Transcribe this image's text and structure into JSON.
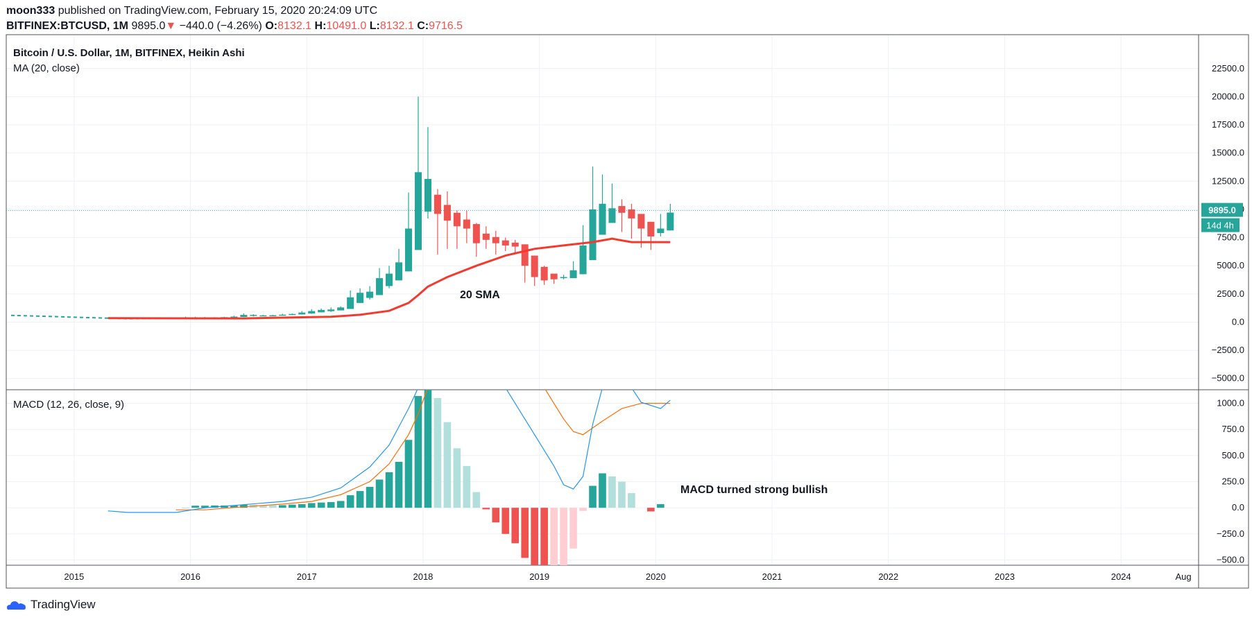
{
  "header": {
    "user": "moon333",
    "published": "published on TradingView.com, February 15, 2020 20:24:09 UTC",
    "symbol": "BITFINEX:BTCUSD, 1M",
    "last": "9895.0",
    "change_arrow": "▼",
    "change": "−440.0 (−4.26%)",
    "o_label": "O:",
    "o_value": "8132.1",
    "h_label": "H:",
    "h_value": "10491.0",
    "l_label": "L:",
    "l_value": "8132.1",
    "c_label": "C:",
    "c_value": "9716.5"
  },
  "footer": {
    "brand": "TradingView"
  },
  "chart_data": [
    {
      "type": "candlestick",
      "title": "Bitcoin / U.S. Dollar, 1M, BITFINEX, Heikin Ashi",
      "indicator_label": "MA (20, close)",
      "annotation": "20 SMA",
      "price_label": "9895.0",
      "countdown_label": "14d 4h",
      "last_price": 9895,
      "ylim": [
        -6000,
        25500
      ],
      "yticks": [
        22500,
        20000,
        17500,
        15000,
        12500,
        10000,
        7500,
        5000,
        2500,
        0,
        -2500,
        -5000
      ],
      "ytick_labels": [
        "22500.0",
        "20000.0",
        "17500.0",
        "15000.0",
        "12500.0",
        "10000.0",
        "7500.0",
        "5000.0",
        "2500.0",
        "0.0",
        "−2500.0",
        "−5000.0"
      ],
      "xlim": [
        "2014-06",
        "2024-09"
      ],
      "xticks": [
        "2015",
        "2016",
        "2017",
        "2018",
        "2019",
        "2020",
        "2021",
        "2022",
        "2023",
        "2024",
        "Aug"
      ],
      "colors": {
        "up": "#26a69a",
        "down": "#ef5350",
        "ma": "#f23b2e"
      },
      "candles": [
        {
          "x": "2015-12",
          "o": 300,
          "h": 480,
          "l": 280,
          "c": 420
        },
        {
          "x": "2016-01",
          "o": 330,
          "h": 470,
          "l": 300,
          "c": 400
        },
        {
          "x": "2016-02",
          "o": 350,
          "h": 450,
          "l": 320,
          "c": 410
        },
        {
          "x": "2016-03",
          "o": 380,
          "h": 440,
          "l": 370,
          "c": 415
        },
        {
          "x": "2016-04",
          "o": 400,
          "h": 470,
          "l": 390,
          "c": 440
        },
        {
          "x": "2016-05",
          "o": 420,
          "h": 560,
          "l": 420,
          "c": 490
        },
        {
          "x": "2016-06",
          "o": 460,
          "h": 780,
          "l": 450,
          "c": 640
        },
        {
          "x": "2016-07",
          "o": 550,
          "h": 700,
          "l": 500,
          "c": 640
        },
        {
          "x": "2016-08",
          "o": 590,
          "h": 640,
          "l": 520,
          "c": 600
        },
        {
          "x": "2016-09",
          "o": 595,
          "h": 640,
          "l": 560,
          "c": 610
        },
        {
          "x": "2016-10",
          "o": 600,
          "h": 740,
          "l": 600,
          "c": 660
        },
        {
          "x": "2016-11",
          "o": 630,
          "h": 760,
          "l": 620,
          "c": 720
        },
        {
          "x": "2016-12",
          "o": 680,
          "h": 980,
          "l": 680,
          "c": 850
        },
        {
          "x": "2017-01",
          "o": 760,
          "h": 1150,
          "l": 740,
          "c": 980
        },
        {
          "x": "2017-02",
          "o": 870,
          "h": 1200,
          "l": 860,
          "c": 1080
        },
        {
          "x": "2017-03",
          "o": 970,
          "h": 1300,
          "l": 900,
          "c": 1120
        },
        {
          "x": "2017-04",
          "o": 1040,
          "h": 1400,
          "l": 1040,
          "c": 1300
        },
        {
          "x": "2017-05",
          "o": 1170,
          "h": 2800,
          "l": 1170,
          "c": 2200
        },
        {
          "x": "2017-06",
          "o": 1700,
          "h": 3000,
          "l": 1700,
          "c": 2600
        },
        {
          "x": "2017-07",
          "o": 2150,
          "h": 3200,
          "l": 2000,
          "c": 2700
        },
        {
          "x": "2017-08",
          "o": 2400,
          "h": 4800,
          "l": 2400,
          "c": 3900
        },
        {
          "x": "2017-09",
          "o": 3200,
          "h": 5000,
          "l": 3000,
          "c": 4300
        },
        {
          "x": "2017-10",
          "o": 3700,
          "h": 6500,
          "l": 3700,
          "c": 5300
        },
        {
          "x": "2017-11",
          "o": 4500,
          "h": 11500,
          "l": 4500,
          "c": 8300
        },
        {
          "x": "2017-12",
          "o": 6400,
          "h": 20000,
          "l": 6400,
          "c": 13300
        },
        {
          "x": "2018-01",
          "o": 9800,
          "h": 17300,
          "l": 9200,
          "c": 12700
        },
        {
          "x": "2018-02",
          "o": 11300,
          "h": 11800,
          "l": 6000,
          "c": 9600
        },
        {
          "x": "2018-03",
          "o": 10400,
          "h": 11600,
          "l": 6500,
          "c": 9000
        },
        {
          "x": "2018-04",
          "o": 9700,
          "h": 9900,
          "l": 6500,
          "c": 8500
        },
        {
          "x": "2018-05",
          "o": 9100,
          "h": 9900,
          "l": 7000,
          "c": 8300
        },
        {
          "x": "2018-06",
          "o": 8700,
          "h": 8800,
          "l": 5800,
          "c": 7000
        },
        {
          "x": "2018-07",
          "o": 7850,
          "h": 8500,
          "l": 6500,
          "c": 7300
        },
        {
          "x": "2018-08",
          "o": 7550,
          "h": 8100,
          "l": 6000,
          "c": 7000
        },
        {
          "x": "2018-09",
          "o": 7250,
          "h": 7500,
          "l": 6300,
          "c": 6800
        },
        {
          "x": "2018-10",
          "o": 7050,
          "h": 7300,
          "l": 6100,
          "c": 6700
        },
        {
          "x": "2018-11",
          "o": 6900,
          "h": 6900,
          "l": 3500,
          "c": 5000
        },
        {
          "x": "2018-12",
          "o": 5900,
          "h": 5900,
          "l": 3200,
          "c": 4000
        },
        {
          "x": "2019-01",
          "o": 4900,
          "h": 5000,
          "l": 3300,
          "c": 3700
        },
        {
          "x": "2019-02",
          "o": 4300,
          "h": 4300,
          "l": 3400,
          "c": 3800
        },
        {
          "x": "2019-03",
          "o": 3950,
          "h": 4200,
          "l": 3800,
          "c": 4000
        },
        {
          "x": "2019-04",
          "o": 3900,
          "h": 5400,
          "l": 3900,
          "c": 4600
        },
        {
          "x": "2019-05",
          "o": 4250,
          "h": 8600,
          "l": 4250,
          "c": 6800
        },
        {
          "x": "2019-06",
          "o": 5500,
          "h": 13800,
          "l": 5500,
          "c": 10000
        },
        {
          "x": "2019-07",
          "o": 7750,
          "h": 13100,
          "l": 7750,
          "c": 10500
        },
        {
          "x": "2019-08",
          "o": 8800,
          "h": 12300,
          "l": 8800,
          "c": 10100
        },
        {
          "x": "2019-09",
          "o": 10300,
          "h": 10900,
          "l": 8000,
          "c": 9700
        },
        {
          "x": "2019-10",
          "o": 10000,
          "h": 10500,
          "l": 7400,
          "c": 9200
        },
        {
          "x": "2019-11",
          "o": 9600,
          "h": 9600,
          "l": 6600,
          "c": 8300
        },
        {
          "x": "2019-12",
          "o": 8900,
          "h": 8900,
          "l": 6400,
          "c": 7600
        },
        {
          "x": "2020-01",
          "o": 7900,
          "h": 9600,
          "l": 7600,
          "c": 8300
        },
        {
          "x": "2020-02",
          "o": 8132.1,
          "h": 10491,
          "l": 8132.1,
          "c": 9716.5
        }
      ],
      "ma_series": [
        {
          "x": "2015-04",
          "y": 350
        },
        {
          "x": "2016-06",
          "y": 330
        },
        {
          "x": "2017-03",
          "y": 480
        },
        {
          "x": "2017-06",
          "y": 650
        },
        {
          "x": "2017-09",
          "y": 1000
        },
        {
          "x": "2017-11",
          "y": 1700
        },
        {
          "x": "2017-12",
          "y": 2400
        },
        {
          "x": "2018-01",
          "y": 3150
        },
        {
          "x": "2018-03",
          "y": 4000
        },
        {
          "x": "2018-06",
          "y": 5000
        },
        {
          "x": "2018-09",
          "y": 5900
        },
        {
          "x": "2018-12",
          "y": 6500
        },
        {
          "x": "2019-03",
          "y": 6800
        },
        {
          "x": "2019-06",
          "y": 7100
        },
        {
          "x": "2019-08",
          "y": 7400
        },
        {
          "x": "2019-10",
          "y": 7100
        },
        {
          "x": "2020-02",
          "y": 7100
        }
      ],
      "dashed_series": [
        {
          "x": "2014-06",
          "y": 600
        },
        {
          "x": "2015-06",
          "y": 300
        },
        {
          "x": "2016-01",
          "y": 350
        }
      ]
    },
    {
      "type": "bar",
      "title": "MACD (12, 26, close, 9)",
      "annotation": "MACD turned strong bullish",
      "ylim": [
        -550,
        1130
      ],
      "yticks": [
        1000,
        750,
        500,
        250,
        0,
        -250,
        -500
      ],
      "ytick_labels": [
        "1000.0",
        "750.0",
        "500.0",
        "250.0",
        "0.0",
        "−250.0",
        "−500.0"
      ],
      "colors": {
        "pos_up": "#26a69a",
        "pos_down": "#b2dfdb",
        "neg_down": "#ef5350",
        "neg_up": "#ffcdd2",
        "macd": "#2196f3",
        "signal": "#ff6d00"
      },
      "histogram": [
        {
          "x": "2015-12",
          "y": 2,
          "c": "pos_down"
        },
        {
          "x": "2016-01",
          "y": 20,
          "c": "pos_up"
        },
        {
          "x": "2016-02",
          "y": 20,
          "c": "pos_up"
        },
        {
          "x": "2016-03",
          "y": 22,
          "c": "pos_up"
        },
        {
          "x": "2016-04",
          "y": 22,
          "c": "pos_up"
        },
        {
          "x": "2016-05",
          "y": 24,
          "c": "pos_up"
        },
        {
          "x": "2016-06",
          "y": 30,
          "c": "pos_up"
        },
        {
          "x": "2016-07",
          "y": 28,
          "c": "pos_down"
        },
        {
          "x": "2016-08",
          "y": 25,
          "c": "pos_down"
        },
        {
          "x": "2016-09",
          "y": 24,
          "c": "pos_down"
        },
        {
          "x": "2016-10",
          "y": 25,
          "c": "pos_up"
        },
        {
          "x": "2016-11",
          "y": 30,
          "c": "pos_up"
        },
        {
          "x": "2016-12",
          "y": 35,
          "c": "pos_up"
        },
        {
          "x": "2017-01",
          "y": 45,
          "c": "pos_up"
        },
        {
          "x": "2017-02",
          "y": 50,
          "c": "pos_up"
        },
        {
          "x": "2017-03",
          "y": 55,
          "c": "pos_up"
        },
        {
          "x": "2017-04",
          "y": 65,
          "c": "pos_up"
        },
        {
          "x": "2017-05",
          "y": 120,
          "c": "pos_up"
        },
        {
          "x": "2017-06",
          "y": 160,
          "c": "pos_up"
        },
        {
          "x": "2017-07",
          "y": 200,
          "c": "pos_up"
        },
        {
          "x": "2017-08",
          "y": 270,
          "c": "pos_up"
        },
        {
          "x": "2017-09",
          "y": 340,
          "c": "pos_up"
        },
        {
          "x": "2017-10",
          "y": 440,
          "c": "pos_up"
        },
        {
          "x": "2017-11",
          "y": 650,
          "c": "pos_up"
        },
        {
          "x": "2017-12",
          "y": 1070,
          "c": "pos_up"
        },
        {
          "x": "2018-01",
          "y": 1150,
          "c": "pos_up"
        },
        {
          "x": "2018-02",
          "y": 1050,
          "c": "pos_down"
        },
        {
          "x": "2018-03",
          "y": 820,
          "c": "pos_down"
        },
        {
          "x": "2018-04",
          "y": 570,
          "c": "pos_down"
        },
        {
          "x": "2018-05",
          "y": 400,
          "c": "pos_down"
        },
        {
          "x": "2018-06",
          "y": 150,
          "c": "pos_down"
        },
        {
          "x": "2018-07",
          "y": -15,
          "c": "neg_down"
        },
        {
          "x": "2018-08",
          "y": -140,
          "c": "neg_down"
        },
        {
          "x": "2018-09",
          "y": -250,
          "c": "neg_down"
        },
        {
          "x": "2018-10",
          "y": -340,
          "c": "neg_down"
        },
        {
          "x": "2018-11",
          "y": -480,
          "c": "neg_down"
        },
        {
          "x": "2018-12",
          "y": -560,
          "c": "neg_down"
        },
        {
          "x": "2019-01",
          "y": -560,
          "c": "neg_down"
        },
        {
          "x": "2019-02",
          "y": -560,
          "c": "neg_up"
        },
        {
          "x": "2019-03",
          "y": -560,
          "c": "neg_up"
        },
        {
          "x": "2019-04",
          "y": -390,
          "c": "neg_up"
        },
        {
          "x": "2019-05",
          "y": -30,
          "c": "neg_up"
        },
        {
          "x": "2019-06",
          "y": 210,
          "c": "pos_up"
        },
        {
          "x": "2019-07",
          "y": 330,
          "c": "pos_up"
        },
        {
          "x": "2019-08",
          "y": 300,
          "c": "pos_down"
        },
        {
          "x": "2019-09",
          "y": 250,
          "c": "pos_down"
        },
        {
          "x": "2019-10",
          "y": 140,
          "c": "pos_down"
        },
        {
          "x": "2019-12",
          "y": -35,
          "c": "neg_down"
        },
        {
          "x": "2020-01",
          "y": 35,
          "c": "pos_up"
        }
      ],
      "macd_line": [
        {
          "x": "2015-04",
          "y": -30
        },
        {
          "x": "2015-06",
          "y": -45
        },
        {
          "x": "2015-11",
          "y": -45
        },
        {
          "x": "2016-02",
          "y": 0
        },
        {
          "x": "2016-06",
          "y": 30
        },
        {
          "x": "2016-10",
          "y": 60
        },
        {
          "x": "2017-01",
          "y": 100
        },
        {
          "x": "2017-04",
          "y": 190
        },
        {
          "x": "2017-07",
          "y": 390
        },
        {
          "x": "2017-09",
          "y": 600
        },
        {
          "x": "2017-11",
          "y": 950
        },
        {
          "x": "2017-12",
          "y": 1150
        },
        {
          "x": "2018-09",
          "y": 1150
        },
        {
          "x": "2018-12",
          "y": 700
        },
        {
          "x": "2019-02",
          "y": 400
        },
        {
          "x": "2019-03",
          "y": 220
        },
        {
          "x": "2019-04",
          "y": 180
        },
        {
          "x": "2019-05",
          "y": 300
        },
        {
          "x": "2019-06",
          "y": 800
        },
        {
          "x": "2019-07",
          "y": 1150
        },
        {
          "x": "2019-10",
          "y": 1150
        },
        {
          "x": "2019-11",
          "y": 1010
        },
        {
          "x": "2020-01",
          "y": 950
        },
        {
          "x": "2020-02",
          "y": 1030
        }
      ],
      "signal_line": [
        {
          "x": "2015-11",
          "y": -20
        },
        {
          "x": "2016-02",
          "y": -20
        },
        {
          "x": "2016-06",
          "y": 10
        },
        {
          "x": "2016-10",
          "y": 35
        },
        {
          "x": "2017-01",
          "y": 60
        },
        {
          "x": "2017-04",
          "y": 125
        },
        {
          "x": "2017-07",
          "y": 250
        },
        {
          "x": "2017-09",
          "y": 420
        },
        {
          "x": "2017-11",
          "y": 700
        },
        {
          "x": "2017-12",
          "y": 900
        },
        {
          "x": "2018-01",
          "y": 1150
        },
        {
          "x": "2019-01",
          "y": 1150
        },
        {
          "x": "2019-03",
          "y": 850
        },
        {
          "x": "2019-04",
          "y": 730
        },
        {
          "x": "2019-05",
          "y": 700
        },
        {
          "x": "2019-07",
          "y": 830
        },
        {
          "x": "2019-09",
          "y": 950
        },
        {
          "x": "2019-11",
          "y": 1000
        },
        {
          "x": "2020-02",
          "y": 1000
        }
      ]
    }
  ]
}
